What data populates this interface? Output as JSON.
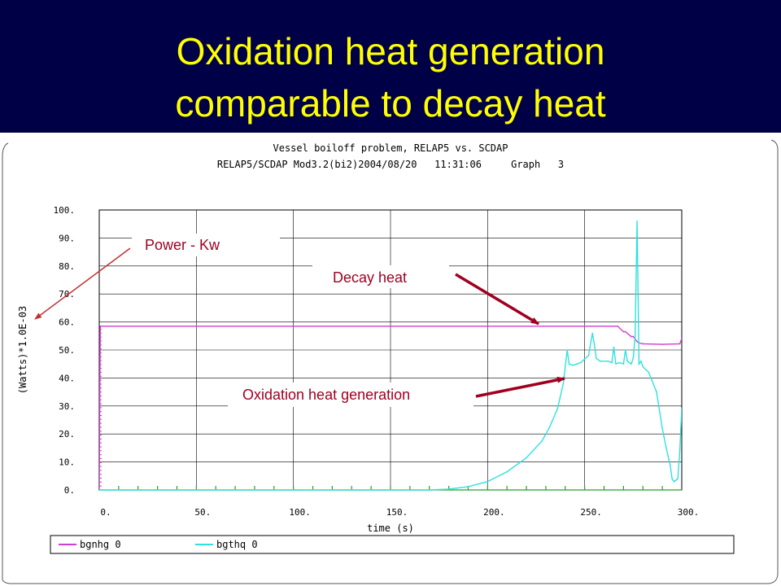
{
  "slide": {
    "title_line1": "Oxidation heat generation",
    "title_line2": "comparable to decay heat",
    "title_color": "#ffff00",
    "background_color": "#000046"
  },
  "plot_header": {
    "line1": "Vessel boiloff problem, RELAP5 vs. SCDAP",
    "line2": "RELAP5/SCDAP Mod3.2(bi2)2004/08/20   11:31:06     Graph   3"
  },
  "annotations": {
    "power": "Power - Kw",
    "decay": "Decay heat",
    "oxidation": "Oxidation heat generation",
    "color": "#a00020"
  },
  "chart_data": {
    "type": "line",
    "title": "",
    "xlabel": "time (s)",
    "ylabel": "(Watts)*1.0E-03",
    "xlim": [
      0,
      300
    ],
    "ylim": [
      0,
      100
    ],
    "grid": true,
    "legend_position": "bottom",
    "x_ticks": [
      "0.",
      "50.",
      "100.",
      "150.",
      "200.",
      "250.",
      "300."
    ],
    "y_ticks": [
      "0.",
      "10.",
      "20.",
      "30.",
      "40.",
      "50.",
      "60.",
      "70.",
      "80.",
      "90.",
      "100."
    ],
    "series": [
      {
        "name": "bgnhg 0",
        "color": "#d23cd2",
        "x": [
          0,
          0.5,
          1,
          266,
          267,
          270,
          271,
          274,
          275,
          277,
          278,
          280,
          290,
          299,
          300
        ],
        "y": [
          0,
          58.5,
          58.5,
          58.5,
          58.5,
          56.5,
          56.5,
          54.8,
          54.8,
          53,
          52.5,
          52.2,
          52,
          52.2,
          54
        ]
      },
      {
        "name": "bgthq 0",
        "color": "#30e0e0",
        "x": [
          0,
          170,
          180,
          190,
          200,
          210,
          220,
          228,
          232,
          236,
          239,
          241,
          242,
          244,
          246,
          248,
          252,
          254,
          255,
          256,
          258,
          262,
          264,
          265,
          266,
          268,
          270,
          271,
          272,
          274,
          275,
          276,
          277,
          278,
          279,
          280,
          283,
          287,
          290,
          292,
          294,
          295,
          296,
          297,
          298,
          299,
          300
        ],
        "y": [
          0,
          0,
          0.3,
          1.2,
          3,
          6.5,
          11.5,
          17.5,
          22.5,
          29,
          38,
          50,
          45,
          44.5,
          45,
          45.5,
          48,
          56,
          52,
          47,
          46,
          46,
          45.5,
          51,
          45,
          45.5,
          45,
          50,
          46,
          45,
          47,
          55,
          96,
          45,
          46,
          44,
          42,
          35,
          22,
          15,
          9,
          4,
          3,
          3.5,
          4,
          14,
          29
        ]
      }
    ]
  }
}
